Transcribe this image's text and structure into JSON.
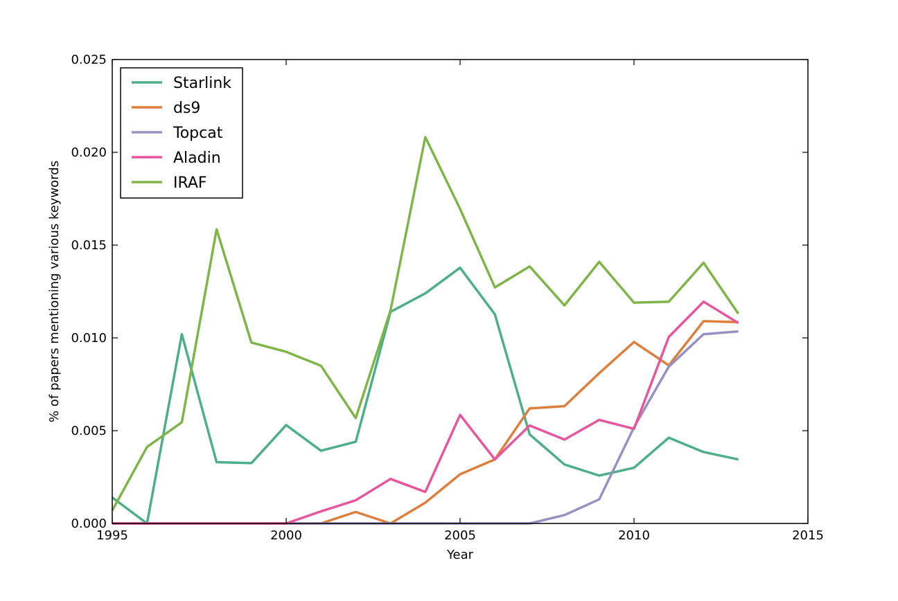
{
  "chart_data": {
    "type": "line",
    "title": "",
    "xlabel": "Year",
    "ylabel": "% of papers mentioning various keywords",
    "xlim": [
      1995,
      2015
    ],
    "ylim": [
      0,
      0.025
    ],
    "xticks": [
      1995,
      2000,
      2005,
      2010,
      2015
    ],
    "xtick_labels": [
      "1995",
      "2000",
      "2005",
      "2010",
      "2015"
    ],
    "yticks": [
      0,
      0.005,
      0.01,
      0.015,
      0.02,
      0.025
    ],
    "ytick_labels": [
      "0.000",
      "0.005",
      "0.010",
      "0.015",
      "0.020",
      "0.025"
    ],
    "grid": false,
    "legend_position": "top-left",
    "x": [
      1995,
      1996,
      1997,
      1998,
      1999,
      2000,
      2001,
      2002,
      2003,
      2004,
      2005,
      2006,
      2007,
      2008,
      2009,
      2010,
      2011,
      2012,
      2013
    ],
    "series": [
      {
        "name": "Starlink",
        "color": "#4daf8a",
        "values": [
          0.0014,
          0.0,
          0.0102,
          0.0033,
          0.00325,
          0.0053,
          0.00392,
          0.0044,
          0.0114,
          0.0124,
          0.01378,
          0.01127,
          0.0048,
          0.00318,
          0.00258,
          0.003,
          0.00462,
          0.00385,
          0.00345
        ]
      },
      {
        "name": "ds9",
        "color": "#dd7f3c",
        "values": [
          0,
          0,
          0,
          0,
          0,
          0,
          0.0,
          0.00062,
          0.0,
          0.00112,
          0.00265,
          0.00345,
          0.0062,
          0.00632,
          0.0081,
          0.00978,
          0.00852,
          0.0109,
          0.01085
        ]
      },
      {
        "name": "Topcat",
        "color": "#9890c2",
        "values": [
          0,
          0,
          0,
          0,
          0,
          0,
          0,
          0,
          0,
          0,
          0,
          0,
          0.0,
          0.00045,
          0.0013,
          0.00518,
          0.00845,
          0.0102,
          0.01035
        ]
      },
      {
        "name": "Aladin",
        "color": "#e6569d",
        "values": [
          0,
          0,
          0,
          0,
          0,
          0.0,
          0.00065,
          0.00125,
          0.0024,
          0.0017,
          0.00585,
          0.00345,
          0.00528,
          0.00452,
          0.00558,
          0.0051,
          0.01005,
          0.01195,
          0.0108
        ]
      },
      {
        "name": "IRAF",
        "color": "#7fb548",
        "values": [
          0.0007,
          0.00412,
          0.00545,
          0.01585,
          0.00975,
          0.00925,
          0.0085,
          0.00568,
          0.01148,
          0.02082,
          0.01695,
          0.01272,
          0.01385,
          0.01175,
          0.0141,
          0.0119,
          0.01195,
          0.01405,
          0.0113
        ]
      }
    ]
  }
}
